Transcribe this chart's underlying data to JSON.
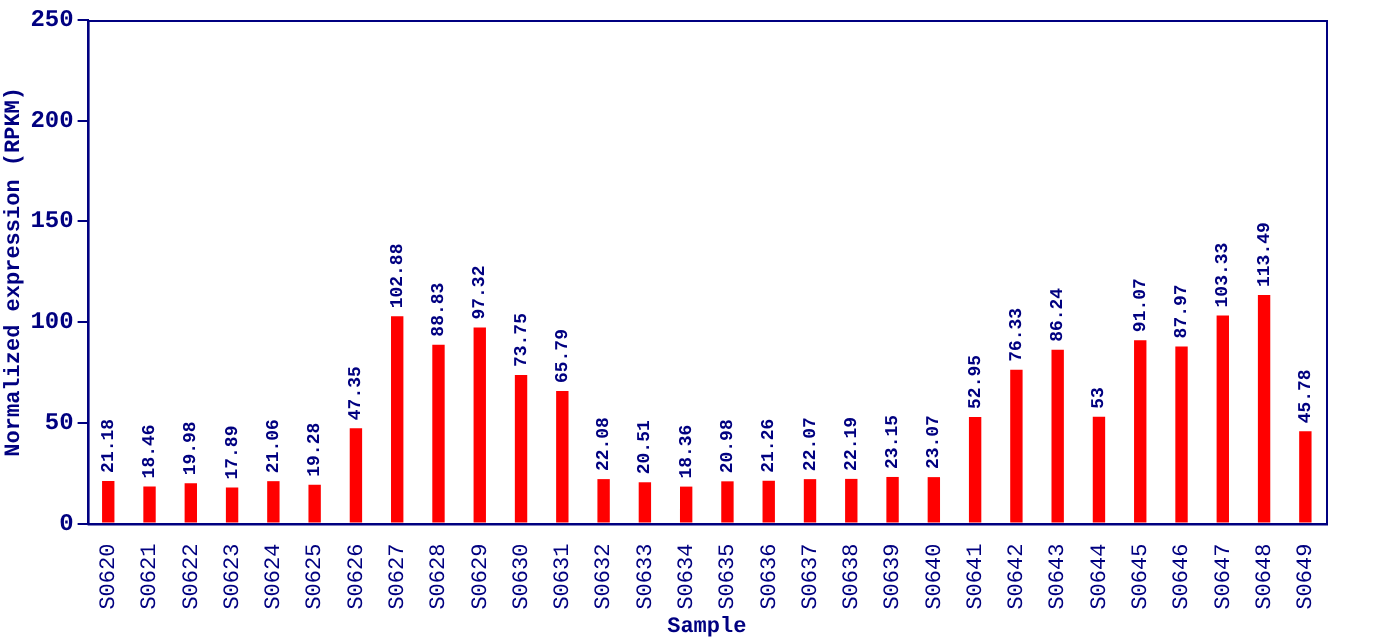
{
  "chart_data": {
    "type": "bar",
    "xlabel": "Sample",
    "ylabel": "Normalized expression (RPKM)",
    "categories": [
      "S0620",
      "S0621",
      "S0622",
      "S0623",
      "S0624",
      "S0625",
      "S0626",
      "S0627",
      "S0628",
      "S0629",
      "S0630",
      "S0631",
      "S0632",
      "S0633",
      "S0634",
      "S0635",
      "S0636",
      "S0637",
      "S0638",
      "S0639",
      "S0640",
      "S0641",
      "S0642",
      "S0643",
      "S0644",
      "S0645",
      "S0646",
      "S0647",
      "S0648",
      "S0649"
    ],
    "values": [
      21.18,
      18.46,
      19.98,
      17.89,
      21.06,
      19.28,
      47.35,
      102.88,
      88.83,
      97.32,
      73.75,
      65.79,
      22.08,
      20.51,
      18.36,
      20.98,
      21.26,
      22.07,
      22.19,
      23.15,
      23.07,
      52.95,
      76.33,
      86.24,
      53,
      91.07,
      87.97,
      103.33,
      113.49,
      45.78
    ],
    "color": "#ff0000",
    "ylim": [
      0,
      250
    ],
    "yticks": [
      0,
      50,
      100,
      150,
      200,
      250
    ],
    "grid": false,
    "legend": false,
    "data_labels": true
  }
}
